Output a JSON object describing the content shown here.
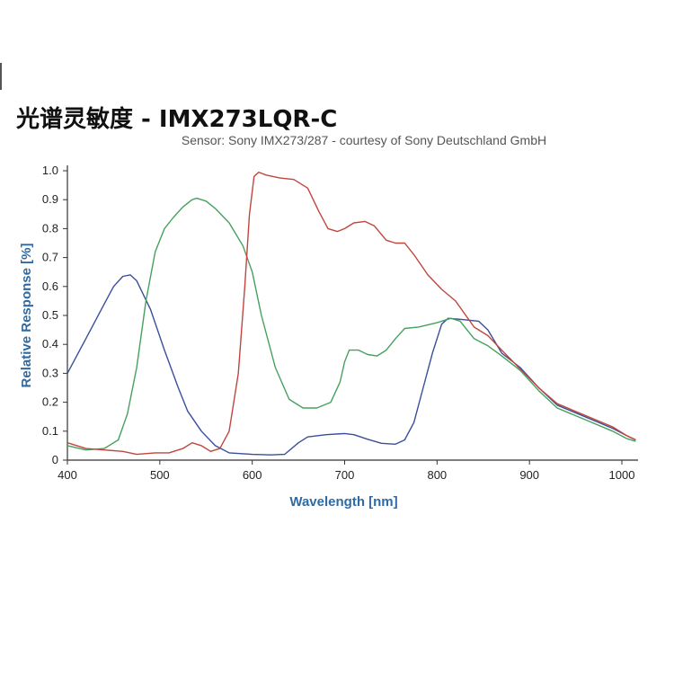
{
  "chart_data": {
    "type": "line",
    "title": "光谱灵敏度 - IMX273LQR-C",
    "subtitle": "Sensor: Sony IMX273/287 - courtesy of Sony Deutschland GmbH",
    "xlabel": "Wavelength [nm]",
    "ylabel": "Relative Response [%]",
    "xlim": [
      400,
      1020
    ],
    "ylim": [
      0,
      1.0
    ],
    "x_ticks": [
      "400",
      "500",
      "600",
      "700",
      "800",
      "900",
      "1000"
    ],
    "y_ticks": [
      "0",
      "0.1",
      "0.2",
      "0.3",
      "0.4",
      "0.5",
      "0.6",
      "0.7",
      "0.8",
      "0.9",
      "1.0"
    ],
    "grid": false,
    "legend": "none",
    "series": [
      {
        "color": "#3a4f9a",
        "points": [
          [
            400,
            0.3
          ],
          [
            420,
            0.42
          ],
          [
            440,
            0.54
          ],
          [
            450,
            0.6
          ],
          [
            460,
            0.635
          ],
          [
            468,
            0.64
          ],
          [
            475,
            0.62
          ],
          [
            490,
            0.52
          ],
          [
            505,
            0.38
          ],
          [
            520,
            0.25
          ],
          [
            530,
            0.17
          ],
          [
            545,
            0.1
          ],
          [
            560,
            0.05
          ],
          [
            575,
            0.025
          ],
          [
            600,
            0.02
          ],
          [
            620,
            0.018
          ],
          [
            635,
            0.02
          ],
          [
            650,
            0.06
          ],
          [
            660,
            0.08
          ],
          [
            680,
            0.088
          ],
          [
            700,
            0.092
          ],
          [
            710,
            0.088
          ],
          [
            725,
            0.072
          ],
          [
            740,
            0.058
          ],
          [
            755,
            0.055
          ],
          [
            765,
            0.07
          ],
          [
            775,
            0.13
          ],
          [
            785,
            0.25
          ],
          [
            795,
            0.37
          ],
          [
            805,
            0.47
          ],
          [
            812,
            0.49
          ],
          [
            830,
            0.485
          ],
          [
            845,
            0.48
          ],
          [
            855,
            0.45
          ],
          [
            870,
            0.37
          ],
          [
            890,
            0.32
          ],
          [
            910,
            0.25
          ],
          [
            930,
            0.19
          ],
          [
            960,
            0.15
          ],
          [
            990,
            0.11
          ],
          [
            1005,
            0.085
          ],
          [
            1015,
            0.07
          ]
        ]
      },
      {
        "color": "#46a060",
        "points": [
          [
            400,
            0.05
          ],
          [
            420,
            0.035
          ],
          [
            440,
            0.04
          ],
          [
            455,
            0.07
          ],
          [
            465,
            0.16
          ],
          [
            475,
            0.32
          ],
          [
            485,
            0.55
          ],
          [
            495,
            0.72
          ],
          [
            505,
            0.8
          ],
          [
            515,
            0.84
          ],
          [
            525,
            0.875
          ],
          [
            535,
            0.9
          ],
          [
            540,
            0.905
          ],
          [
            550,
            0.895
          ],
          [
            560,
            0.87
          ],
          [
            575,
            0.82
          ],
          [
            590,
            0.74
          ],
          [
            600,
            0.65
          ],
          [
            610,
            0.5
          ],
          [
            625,
            0.32
          ],
          [
            640,
            0.21
          ],
          [
            655,
            0.18
          ],
          [
            670,
            0.18
          ],
          [
            685,
            0.2
          ],
          [
            695,
            0.27
          ],
          [
            700,
            0.34
          ],
          [
            705,
            0.38
          ],
          [
            715,
            0.38
          ],
          [
            725,
            0.365
          ],
          [
            735,
            0.36
          ],
          [
            745,
            0.38
          ],
          [
            755,
            0.42
          ],
          [
            765,
            0.455
          ],
          [
            780,
            0.46
          ],
          [
            800,
            0.475
          ],
          [
            815,
            0.49
          ],
          [
            825,
            0.48
          ],
          [
            840,
            0.42
          ],
          [
            855,
            0.395
          ],
          [
            870,
            0.36
          ],
          [
            890,
            0.31
          ],
          [
            910,
            0.24
          ],
          [
            930,
            0.18
          ],
          [
            960,
            0.14
          ],
          [
            990,
            0.1
          ],
          [
            1005,
            0.075
          ],
          [
            1015,
            0.065
          ]
        ]
      },
      {
        "color": "#c0463e",
        "points": [
          [
            400,
            0.06
          ],
          [
            420,
            0.04
          ],
          [
            440,
            0.035
          ],
          [
            460,
            0.03
          ],
          [
            475,
            0.02
          ],
          [
            495,
            0.025
          ],
          [
            510,
            0.025
          ],
          [
            525,
            0.04
          ],
          [
            535,
            0.06
          ],
          [
            545,
            0.05
          ],
          [
            555,
            0.03
          ],
          [
            565,
            0.04
          ],
          [
            575,
            0.1
          ],
          [
            585,
            0.3
          ],
          [
            592,
            0.6
          ],
          [
            597,
            0.85
          ],
          [
            602,
            0.98
          ],
          [
            607,
            0.995
          ],
          [
            615,
            0.985
          ],
          [
            630,
            0.975
          ],
          [
            645,
            0.97
          ],
          [
            660,
            0.94
          ],
          [
            672,
            0.86
          ],
          [
            682,
            0.8
          ],
          [
            692,
            0.79
          ],
          [
            700,
            0.8
          ],
          [
            710,
            0.82
          ],
          [
            722,
            0.825
          ],
          [
            732,
            0.81
          ],
          [
            745,
            0.76
          ],
          [
            755,
            0.75
          ],
          [
            765,
            0.75
          ],
          [
            775,
            0.71
          ],
          [
            790,
            0.64
          ],
          [
            805,
            0.59
          ],
          [
            820,
            0.55
          ],
          [
            840,
            0.46
          ],
          [
            855,
            0.43
          ],
          [
            870,
            0.38
          ],
          [
            890,
            0.315
          ],
          [
            910,
            0.25
          ],
          [
            930,
            0.195
          ],
          [
            960,
            0.155
          ],
          [
            990,
            0.115
          ],
          [
            1005,
            0.085
          ],
          [
            1015,
            0.07
          ]
        ]
      }
    ]
  }
}
